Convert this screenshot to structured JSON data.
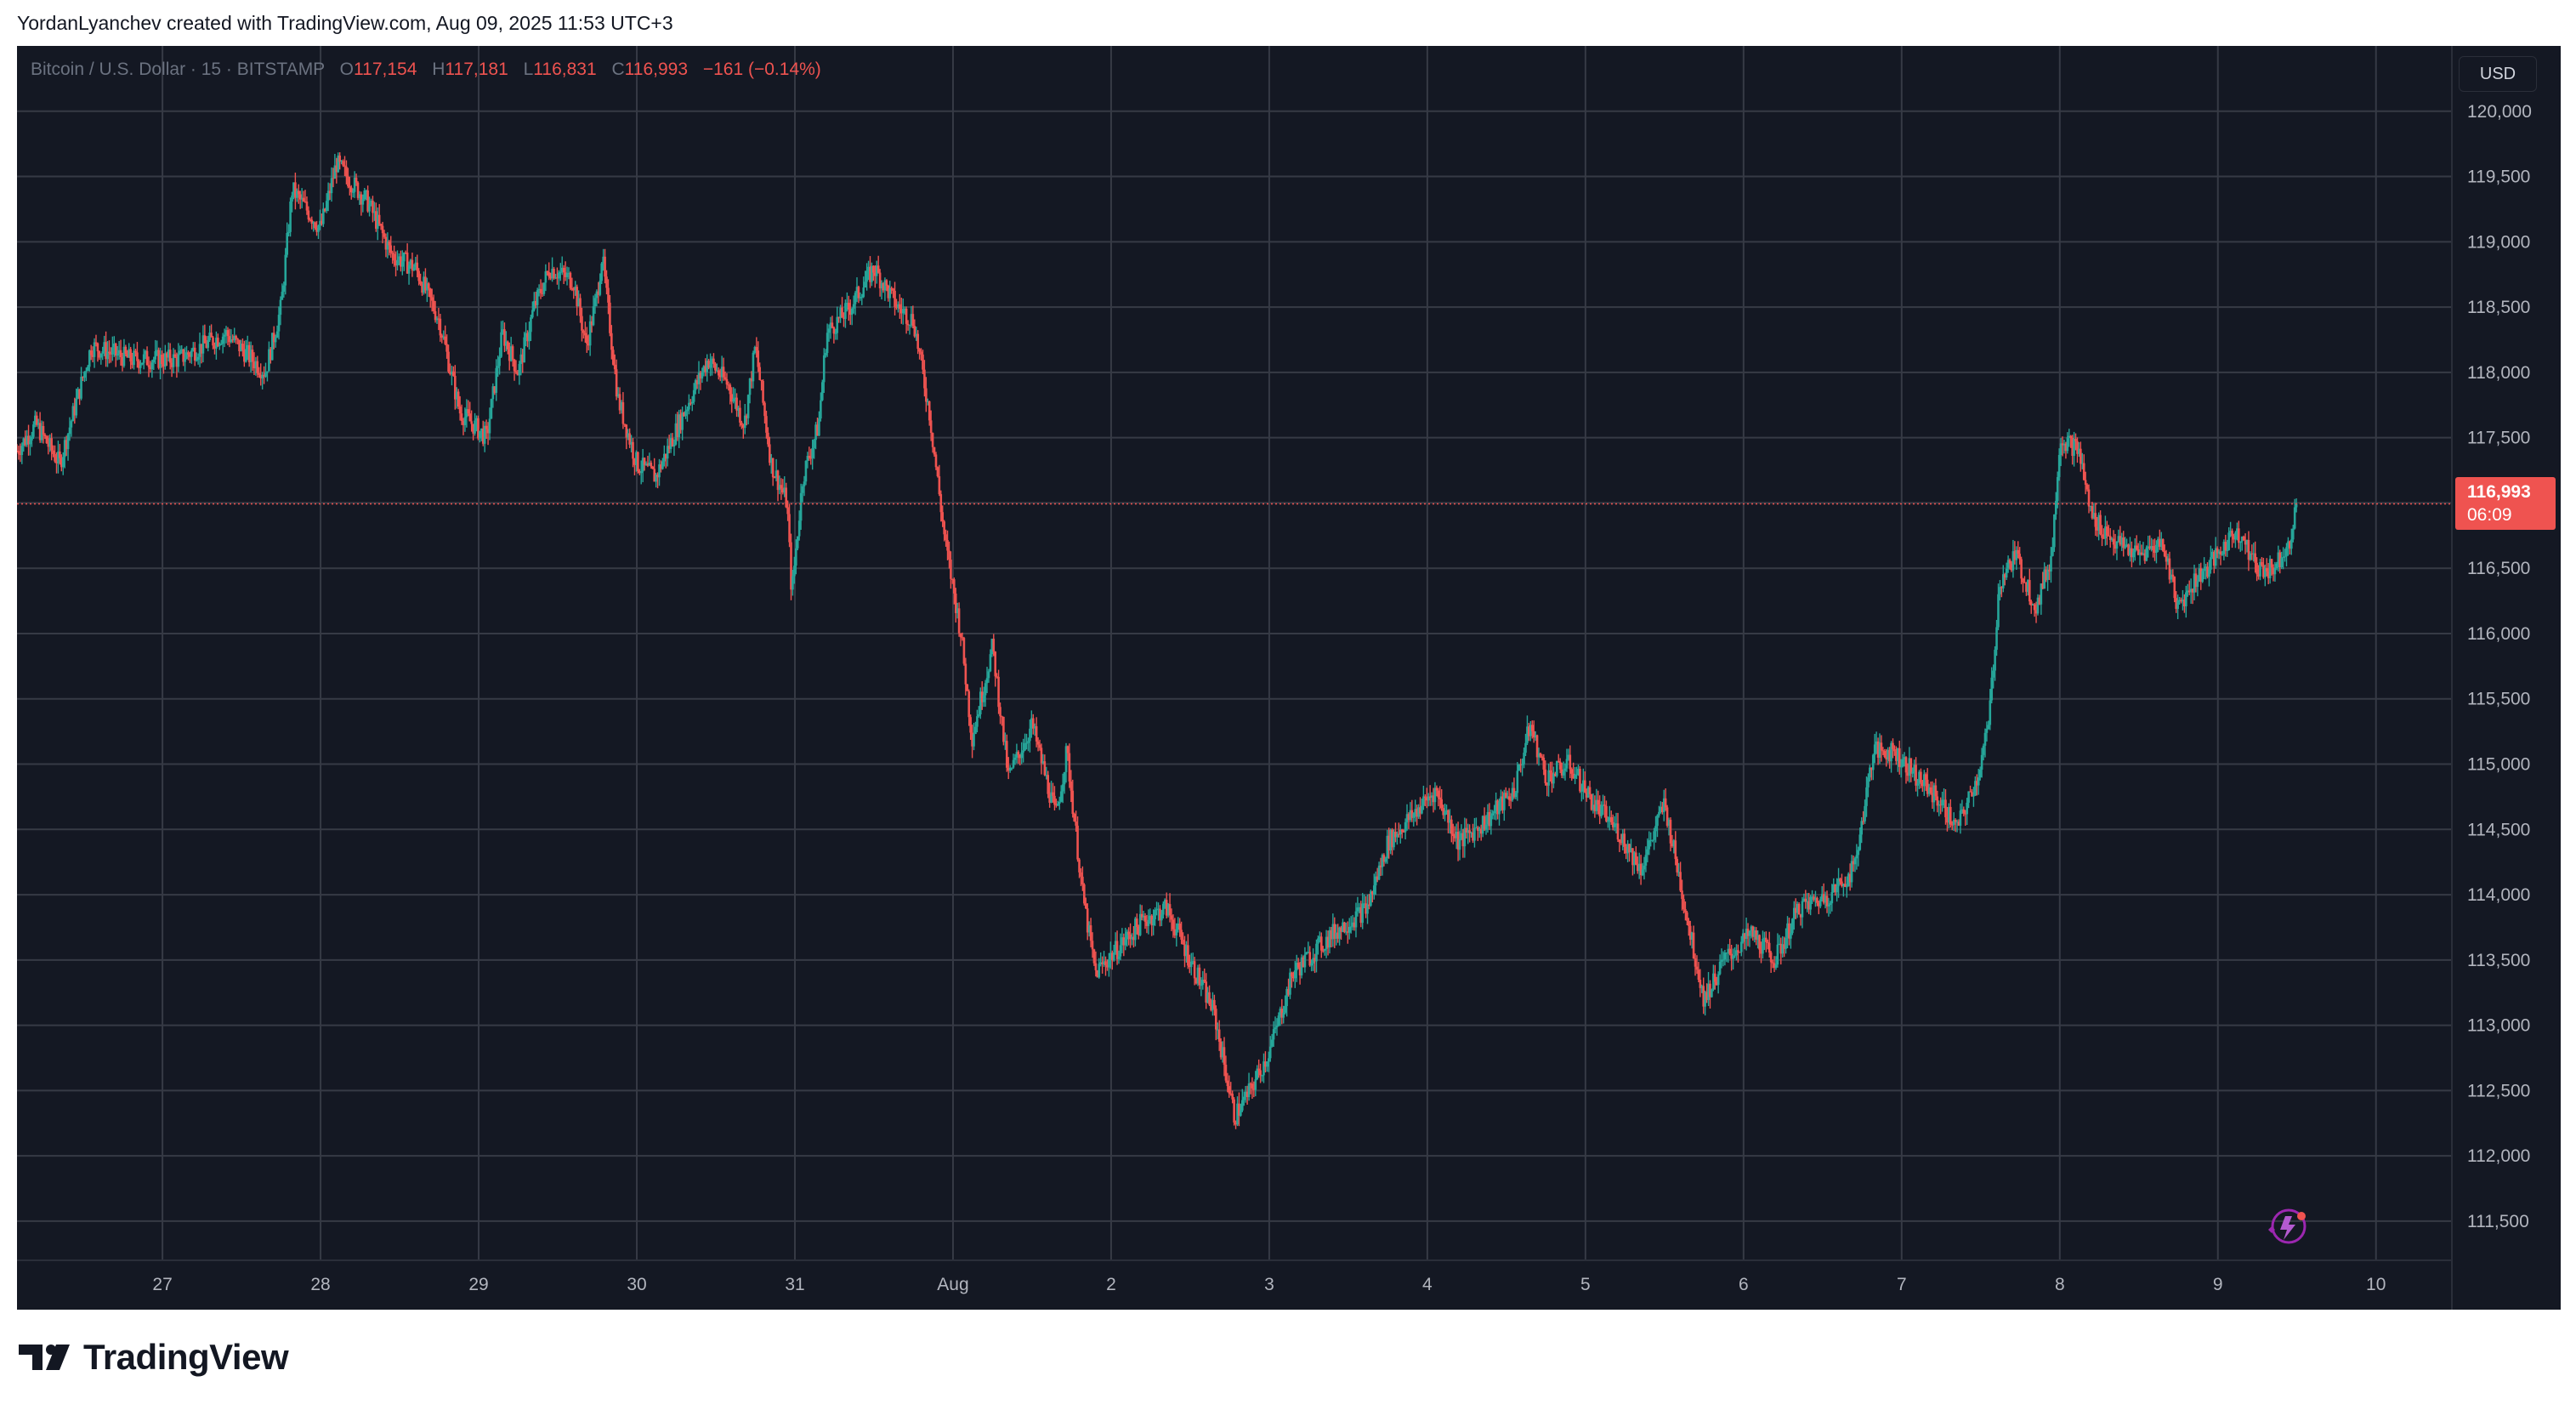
{
  "caption": "YordanLyanchev created with TradingView.com, Aug 09, 2025 11:53 UTC+3",
  "legend": {
    "symbol": "Bitcoin / U.S. Dollar · 15 · BITSTAMP",
    "o_label": "O",
    "o_value": "117,154",
    "h_label": "H",
    "h_value": "117,181",
    "l_label": "L",
    "l_value": "116,831",
    "c_label": "C",
    "c_value": "116,993",
    "change": "−161 (−0.14%)"
  },
  "currency_button": "USD",
  "price_tag": {
    "price": "116,993",
    "countdown": "06:09"
  },
  "brand": "TradingView",
  "colors": {
    "background": "#141823",
    "grid": "#363a45",
    "up": "#26a69a",
    "down": "#ef5350",
    "axis_text": "#b2b5be",
    "accent_icon": "#9c27b0"
  },
  "icons": [
    "tradingview-logo-icon",
    "ai-sparkle-icon"
  ],
  "chart_data": {
    "type": "candlestick",
    "interval": "15",
    "exchange": "BITSTAMP",
    "ylim": [
      111200,
      120500
    ],
    "y_ticks": [
      111500,
      112000,
      112500,
      113000,
      113500,
      114000,
      114500,
      115000,
      115500,
      116000,
      116500,
      117000,
      117500,
      118000,
      118500,
      119000,
      119500,
      120000
    ],
    "y_tick_labels": [
      "111,500",
      "112,000",
      "112,500",
      "113,000",
      "113,500",
      "114,000",
      "114,500",
      "115,000",
      "115,500",
      "116,000",
      "116,500",
      "117,000",
      "117,500",
      "118,000",
      "118,500",
      "119,000",
      "119,500",
      "120,000"
    ],
    "x_ticks": [
      27,
      28,
      29,
      30,
      31,
      32,
      33,
      34,
      35,
      36,
      37,
      38,
      39,
      40,
      41
    ],
    "x_tick_labels": [
      "27",
      "28",
      "29",
      "30",
      "31",
      "Aug",
      "2",
      "3",
      "4",
      "5",
      "6",
      "7",
      "8",
      "9",
      "10"
    ],
    "xlim": [
      26.08,
      41.48
    ],
    "last_price": 116993,
    "grid": true,
    "series_path": [
      [
        26.08,
        117400
      ],
      [
        26.2,
        117600
      ],
      [
        26.35,
        117300
      ],
      [
        26.55,
        118200
      ],
      [
        26.8,
        118100
      ],
      [
        27.1,
        118100
      ],
      [
        27.4,
        118300
      ],
      [
        27.65,
        118000
      ],
      [
        27.75,
        118500
      ],
      [
        27.82,
        119400
      ],
      [
        28.0,
        119100
      ],
      [
        28.1,
        119600
      ],
      [
        28.3,
        119300
      ],
      [
        28.45,
        118900
      ],
      [
        28.6,
        118800
      ],
      [
        28.75,
        118400
      ],
      [
        28.88,
        117700
      ],
      [
        29.05,
        117500
      ],
      [
        29.15,
        118300
      ],
      [
        29.25,
        118000
      ],
      [
        29.35,
        118500
      ],
      [
        29.45,
        118800
      ],
      [
        29.6,
        118700
      ],
      [
        29.68,
        118200
      ],
      [
        29.75,
        118600
      ],
      [
        29.78,
        118900
      ],
      [
        29.88,
        117800
      ],
      [
        30.0,
        117300
      ],
      [
        30.12,
        117200
      ],
      [
        30.3,
        117700
      ],
      [
        30.45,
        118100
      ],
      [
        30.58,
        117900
      ],
      [
        30.68,
        117600
      ],
      [
        30.75,
        118200
      ],
      [
        30.85,
        117300
      ],
      [
        30.95,
        117000
      ],
      [
        30.98,
        116300
      ],
      [
        31.05,
        117200
      ],
      [
        31.15,
        117600
      ],
      [
        31.2,
        118300
      ],
      [
        31.35,
        118500
      ],
      [
        31.5,
        118800
      ],
      [
        31.65,
        118500
      ],
      [
        31.75,
        118400
      ],
      [
        31.85,
        117700
      ],
      [
        31.95,
        116700
      ],
      [
        32.05,
        116000
      ],
      [
        32.12,
        115200
      ],
      [
        32.25,
        115900
      ],
      [
        32.35,
        114900
      ],
      [
        32.5,
        115300
      ],
      [
        32.65,
        114600
      ],
      [
        32.72,
        115100
      ],
      [
        32.82,
        114000
      ],
      [
        32.9,
        113400
      ],
      [
        33.05,
        113600
      ],
      [
        33.2,
        113800
      ],
      [
        33.35,
        113900
      ],
      [
        33.5,
        113500
      ],
      [
        33.65,
        113100
      ],
      [
        33.78,
        112300
      ],
      [
        33.88,
        112500
      ],
      [
        34.0,
        112800
      ],
      [
        34.15,
        113400
      ],
      [
        34.4,
        113700
      ],
      [
        34.62,
        113900
      ],
      [
        34.75,
        114400
      ],
      [
        34.9,
        114600
      ],
      [
        35.05,
        114800
      ],
      [
        35.2,
        114400
      ],
      [
        35.4,
        114600
      ],
      [
        35.55,
        114800
      ],
      [
        35.65,
        115300
      ],
      [
        35.75,
        114900
      ],
      [
        35.9,
        115000
      ],
      [
        36.05,
        114700
      ],
      [
        36.2,
        114500
      ],
      [
        36.35,
        114200
      ],
      [
        36.5,
        114700
      ],
      [
        36.68,
        113600
      ],
      [
        36.75,
        113200
      ],
      [
        36.88,
        113500
      ],
      [
        37.05,
        113700
      ],
      [
        37.2,
        113500
      ],
      [
        37.35,
        113900
      ],
      [
        37.55,
        114000
      ],
      [
        37.7,
        114200
      ],
      [
        37.82,
        115100
      ],
      [
        37.95,
        115100
      ],
      [
        38.1,
        114900
      ],
      [
        38.25,
        114700
      ],
      [
        38.35,
        114500
      ],
      [
        38.48,
        114900
      ],
      [
        38.55,
        115300
      ],
      [
        38.62,
        116400
      ],
      [
        38.72,
        116600
      ],
      [
        38.85,
        116200
      ],
      [
        38.95,
        116600
      ],
      [
        39.0,
        117500
      ],
      [
        39.12,
        117400
      ],
      [
        39.2,
        116900
      ],
      [
        39.35,
        116700
      ],
      [
        39.5,
        116600
      ],
      [
        39.65,
        116700
      ],
      [
        39.75,
        116200
      ],
      [
        39.85,
        116400
      ],
      [
        40.0,
        116600
      ],
      [
        40.12,
        116800
      ],
      [
        40.25,
        116500
      ],
      [
        40.35,
        116500
      ],
      [
        40.45,
        116700
      ],
      [
        40.5,
        116993
      ]
    ]
  }
}
